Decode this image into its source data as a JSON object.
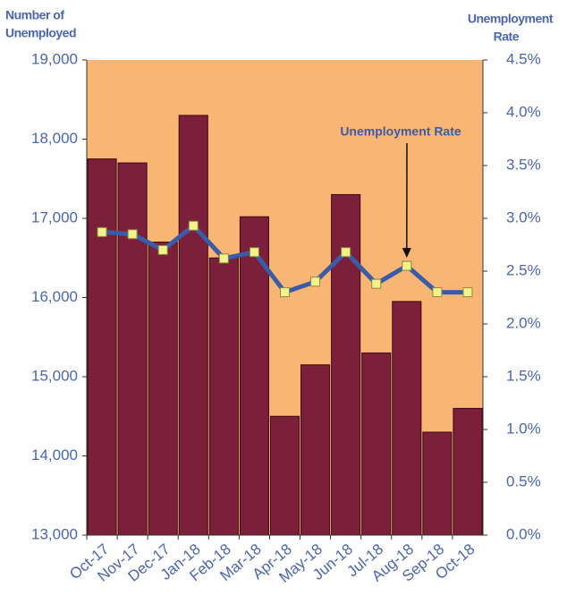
{
  "chart_data": {
    "type": "bar_line",
    "y_label": [
      "Number of",
      "Unemployed"
    ],
    "y2_label": [
      "Unemployment",
      "Rate"
    ],
    "categories": [
      "Oct-17",
      "Nov-17",
      "Dec-17",
      "Jan-18",
      "Feb-18",
      "Mar-18",
      "Apr-18",
      "May-18",
      "Jun-18",
      "Jul-18",
      "Aug-18",
      "Sep-18",
      "Oct-18"
    ],
    "series": [
      {
        "color": "#7b1f3a",
        "values": [
          17750,
          17700,
          16700,
          18300,
          16500,
          17020,
          14500,
          15150,
          17300,
          15300,
          15950,
          14300,
          14600
        ]
      },
      {
        "name": "Unemployment Rate",
        "axis": "y2",
        "color": "#3a5ba8",
        "marker_color": "#f2f28a",
        "values": [
          2.87,
          2.85,
          2.7,
          2.93,
          2.62,
          2.68,
          2.3,
          2.4,
          2.68,
          2.38,
          2.55,
          2.3,
          2.3
        ]
      }
    ],
    "ylim": [
      13000,
      19000
    ],
    "yticks": [
      {
        "value": 13000,
        "label": "13,000"
      },
      {
        "value": 14000,
        "label": "14,000"
      },
      {
        "value": 15000,
        "label": "15,000"
      },
      {
        "value": 16000,
        "label": "16,000"
      },
      {
        "value": 17000,
        "label": "17,000"
      },
      {
        "value": 18000,
        "label": "18,000"
      },
      {
        "value": 19000,
        "label": "19,000"
      }
    ],
    "y2lim": [
      0,
      4.5
    ],
    "y2ticks": [
      {
        "value": 0,
        "label": "0.0%"
      },
      {
        "value": 0.5,
        "label": "0.5%"
      },
      {
        "value": 1,
        "label": "1.0%"
      },
      {
        "value": 1.5,
        "label": "1.5%"
      },
      {
        "value": 2,
        "label": "2.0%"
      },
      {
        "value": 2.5,
        "label": "2.5%"
      },
      {
        "value": 3,
        "label": "3.0%"
      },
      {
        "value": 3.5,
        "label": "3.5%"
      },
      {
        "value": 4,
        "label": "4.0%"
      },
      {
        "value": 4.5,
        "label": "4.5%"
      }
    ],
    "plot_background": "#f8b574",
    "annotation_index": 10
  }
}
